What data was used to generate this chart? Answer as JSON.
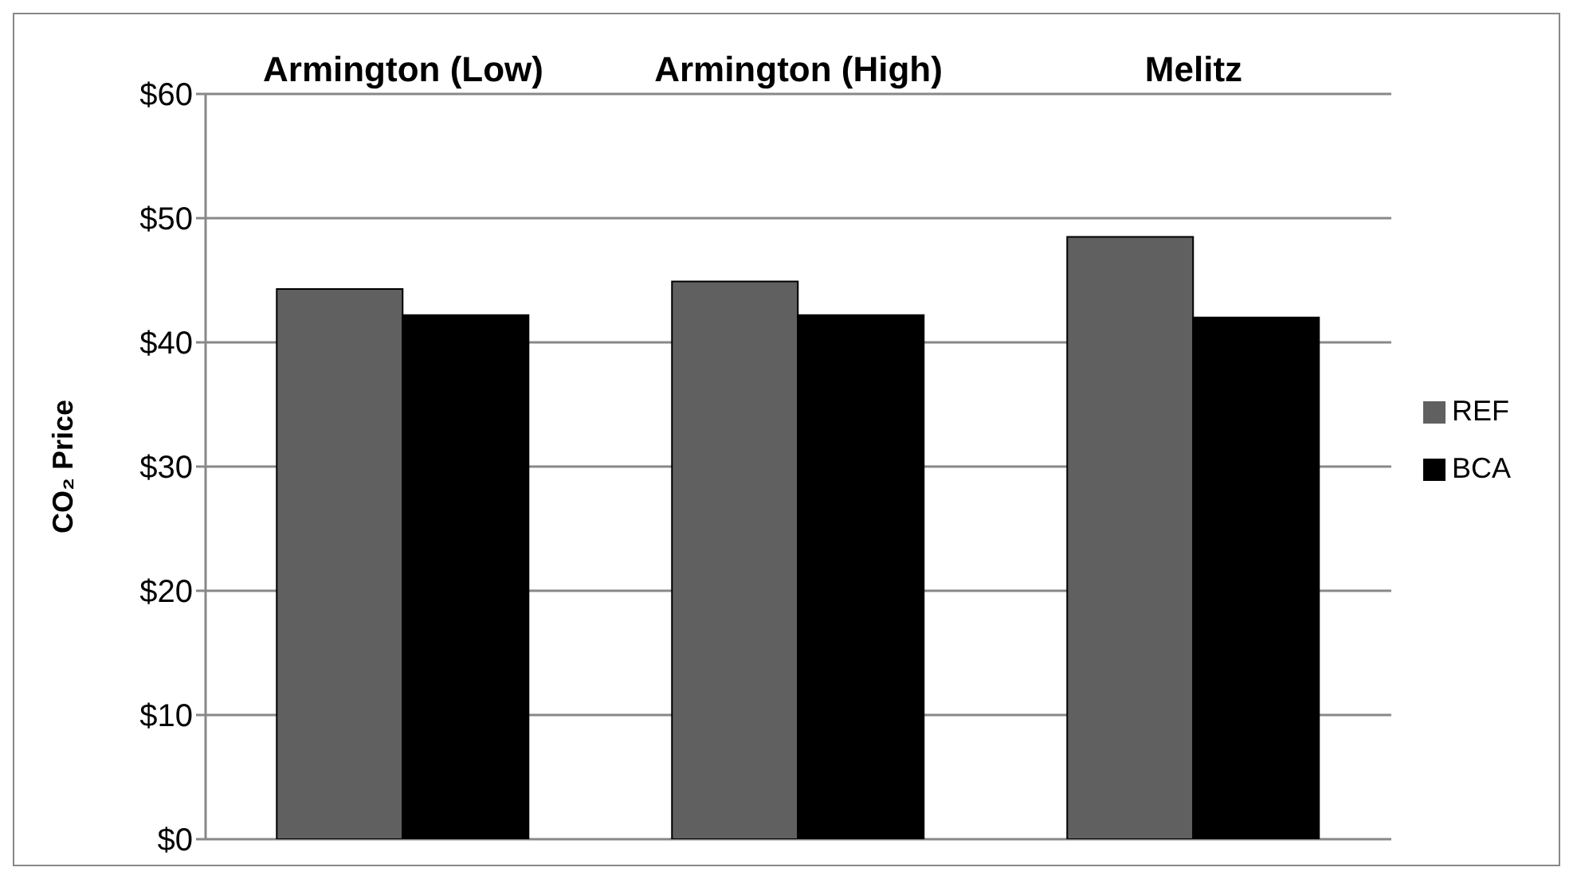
{
  "chart_data": {
    "type": "bar",
    "ylabel": "CO₂ Price",
    "categories": [
      "Armington (Low)",
      "Armington (High)",
      "Melitz"
    ],
    "series": [
      {
        "name": "REF",
        "color": "#606060",
        "values": [
          44.3,
          44.9,
          48.5
        ]
      },
      {
        "name": "BCA",
        "color": "#000000",
        "values": [
          42.2,
          42.2,
          42.0
        ]
      }
    ],
    "ylim": [
      0,
      60
    ],
    "yticks": [
      {
        "value": 0,
        "label": "$0"
      },
      {
        "value": 10,
        "label": "$10"
      },
      {
        "value": 20,
        "label": "$20"
      },
      {
        "value": 30,
        "label": "$30"
      },
      {
        "value": 40,
        "label": "$40"
      },
      {
        "value": 50,
        "label": "$50"
      },
      {
        "value": 60,
        "label": "$60"
      }
    ],
    "grid": "y",
    "legend": "right"
  }
}
